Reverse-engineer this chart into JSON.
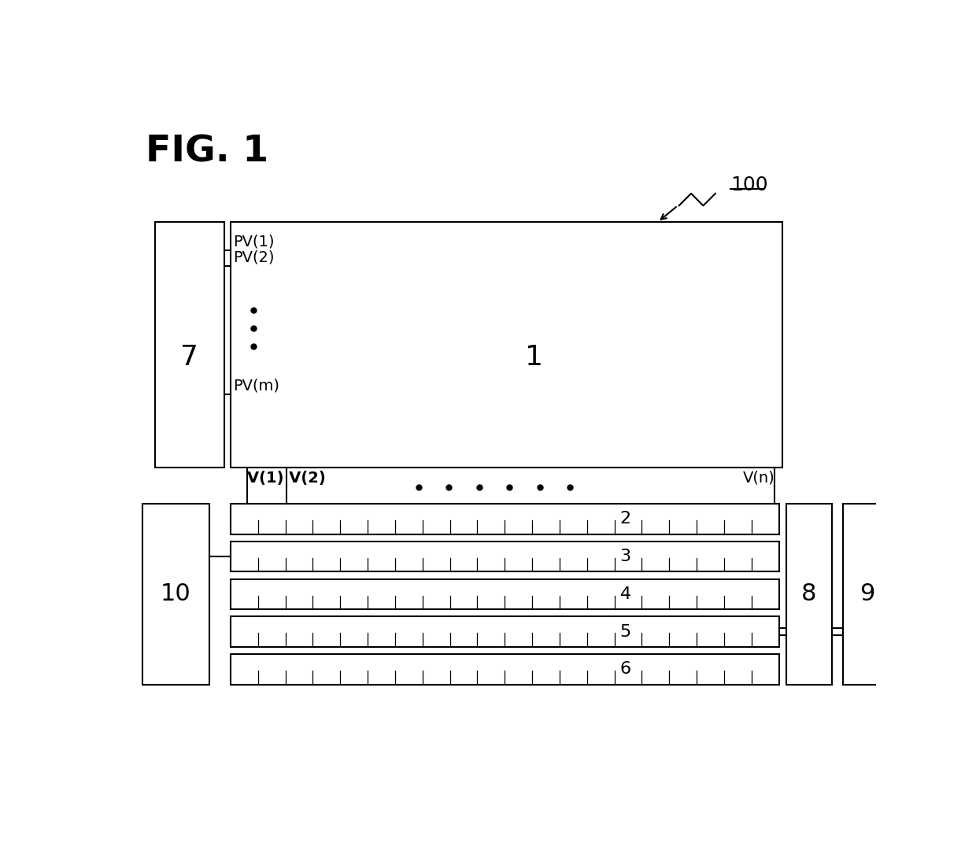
{
  "fig_title": "FIG. 1",
  "label_100": "100",
  "bg_color": "#ffffff",
  "lw": 1.5,
  "box1_label": "1",
  "box2_label": "2",
  "box3_label": "3",
  "box4_label": "4",
  "box5_label": "5",
  "box6_label": "6",
  "box7_label": "7",
  "box8_label": "8",
  "box9_label": "9",
  "box10_label": "10",
  "pv1_label": "PV(1)",
  "pv2_label": "PV(2)",
  "pvm_label": "PV(m)",
  "v1_label": "V(1) V(2)",
  "vn_label": "V(n)",
  "fig_w": 1240,
  "fig_h": 1099
}
